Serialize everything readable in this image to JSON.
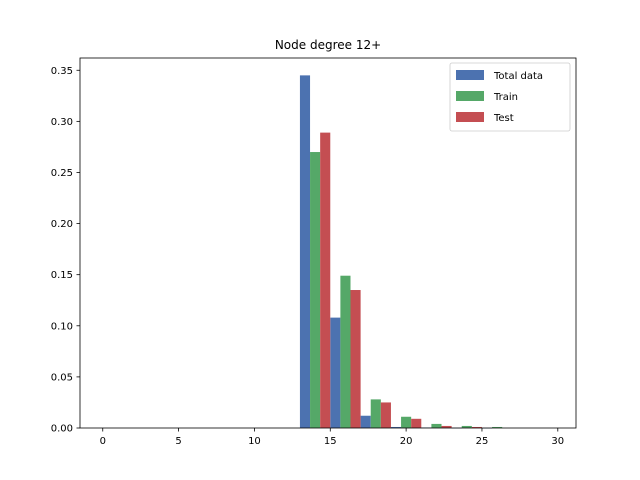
{
  "chart_data": {
    "type": "bar",
    "title": "Node degree 12+",
    "xlabel": "",
    "ylabel": "",
    "xlim": [
      -1.5,
      31.2
    ],
    "ylim": [
      0,
      0.362
    ],
    "x_ticks": [
      0,
      5,
      10,
      15,
      20,
      25,
      30
    ],
    "y_ticks": [
      0.0,
      0.05,
      0.1,
      0.15,
      0.2,
      0.25,
      0.3,
      0.35
    ],
    "x_tick_labels": [
      "0",
      "5",
      "10",
      "15",
      "20",
      "25",
      "30"
    ],
    "y_tick_labels": [
      "0.00",
      "0.05",
      "0.10",
      "0.15",
      "0.20",
      "0.25",
      "0.30",
      "0.35"
    ],
    "legend_position": "top-right",
    "bin_starts": [
      13,
      15,
      17,
      19,
      21,
      23,
      25,
      27
    ],
    "bin_width": 2,
    "series": [
      {
        "name": "Total data",
        "color": "#4c72b0",
        "values": [
          0.345,
          0.108,
          0.012,
          0.001,
          0.0005,
          0.0002,
          0.0001,
          0.0
        ]
      },
      {
        "name": "Train",
        "color": "#55a868",
        "values": [
          0.27,
          0.149,
          0.028,
          0.011,
          0.004,
          0.002,
          0.001,
          0.0
        ]
      },
      {
        "name": "Test",
        "color": "#c44e52",
        "values": [
          0.289,
          0.135,
          0.025,
          0.009,
          0.002,
          0.001,
          0.0,
          0.0
        ]
      }
    ]
  }
}
